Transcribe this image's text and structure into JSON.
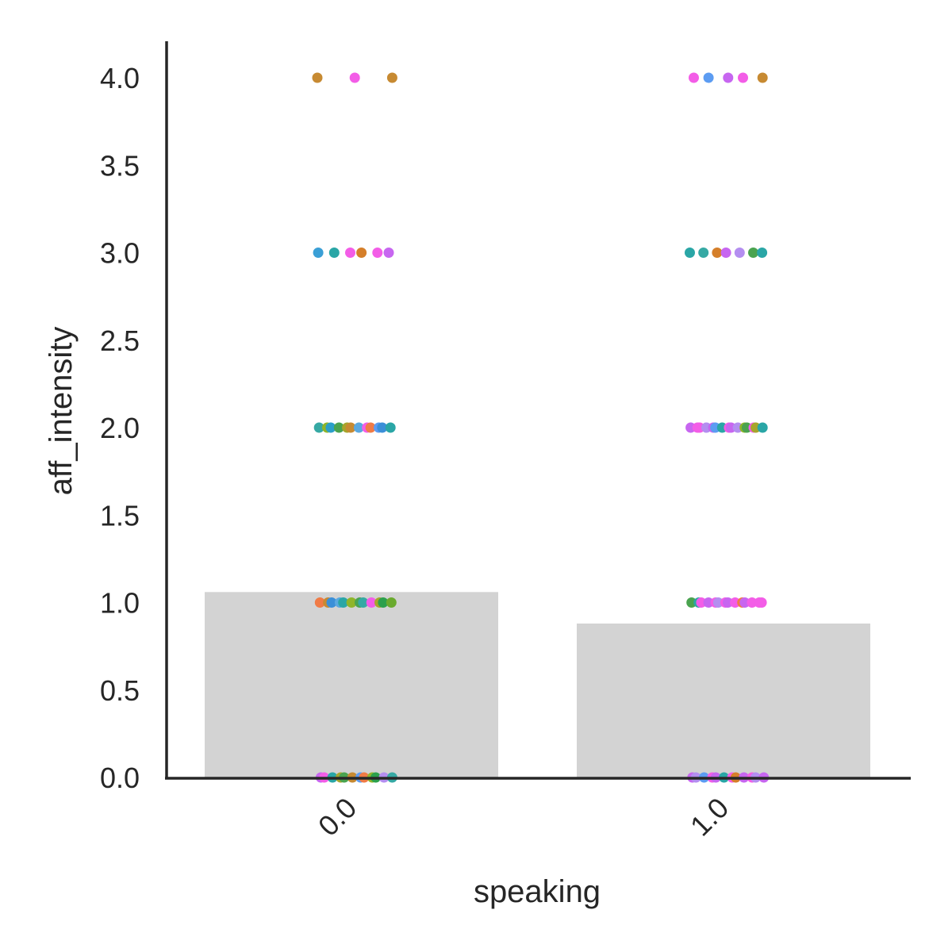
{
  "chart_data": {
    "type": "bar",
    "title": "",
    "xlabel": "speaking",
    "ylabel": "aff_intensity",
    "categories": [
      "0.0",
      "1.0"
    ],
    "values": [
      1.06,
      0.88
    ],
    "ylim": [
      0,
      4.2
    ],
    "yticks": [
      "0.0",
      "0.5",
      "1.0",
      "1.5",
      "2.0",
      "2.5",
      "3.0",
      "3.5",
      "4.0"
    ],
    "grid": false,
    "legend": "none",
    "bar_color": "#d3d3d3",
    "axis_color": "#262626",
    "strip_points": [
      {
        "category": "0.0",
        "y": 4,
        "colors": [
          "#c78a32",
          "#f35de7",
          "#c78a32"
        ]
      },
      {
        "category": "0.0",
        "y": 3,
        "colors": [
          "#3a9fd6",
          "#2aa6a6",
          "#f35de7",
          "#d57f2a",
          "#f35de7",
          "#c766f0"
        ]
      },
      {
        "category": "0.0",
        "y": 2,
        "colors": [
          "#36a9a4",
          "#8fb52a",
          "#2b9fc9",
          "#4aa34f",
          "#a7a52c",
          "#c78a32",
          "#5aa8e0",
          "#f35de7",
          "#f07b46",
          "#5c9cf2",
          "#3b8fd8",
          "#2aa6a6"
        ]
      },
      {
        "category": "0.0",
        "y": 1,
        "colors": [
          "#f07b46",
          "#c78a32",
          "#3b8fd8",
          "#5aa8e0",
          "#2aa6a6",
          "#8fb52a",
          "#4aa34f",
          "#36a9a4",
          "#f35de7",
          "#a7a52c",
          "#2ca04c",
          "#6aaa2e"
        ]
      },
      {
        "category": "0.0",
        "y": 0,
        "colors": [
          "#c766f0",
          "#f35de7",
          "#2aa6a6",
          "#a7a52c",
          "#4aa34f",
          "#c78a32",
          "#5c9cf2",
          "#f07b46",
          "#8fb52a",
          "#2ca04c",
          "#b48ef0",
          "#36a9a4"
        ]
      },
      {
        "category": "1.0",
        "y": 4,
        "colors": [
          "#f35de7",
          "#5c9cf2",
          "#c766f0",
          "#f35de7",
          "#c78a32"
        ]
      },
      {
        "category": "1.0",
        "y": 3,
        "colors": [
          "#2aa6a6",
          "#36a9a4",
          "#d57f2a",
          "#c766f0",
          "#b48ef0",
          "#4aa34f",
          "#2aa6a6"
        ]
      },
      {
        "category": "1.0",
        "y": 2,
        "colors": [
          "#c766f0",
          "#f35de7",
          "#f35de7",
          "#b48ef0",
          "#c766f0",
          "#5c9cf2",
          "#2aa6a6",
          "#f35de7",
          "#c766f0",
          "#b48ef0",
          "#8fb52a",
          "#4aa34f",
          "#f35de7",
          "#a7a52c",
          "#2aa6a6"
        ]
      },
      {
        "category": "1.0",
        "y": 1,
        "colors": [
          "#4aa34f",
          "#2aa6a6",
          "#f35de7",
          "#c766f0",
          "#f35de7",
          "#b48ef0",
          "#f35de7",
          "#c766f0",
          "#f35de7",
          "#f07b46",
          "#c766f0",
          "#f35de7",
          "#f35de7",
          "#f35de7"
        ]
      },
      {
        "category": "1.0",
        "y": 0,
        "colors": [
          "#c766f0",
          "#b48ef0",
          "#5c9cf2",
          "#f35de7",
          "#c766f0",
          "#2aa6a6",
          "#f35de7",
          "#d57f2a",
          "#c766f0",
          "#f35de7",
          "#b48ef0",
          "#c766f0"
        ]
      }
    ]
  }
}
